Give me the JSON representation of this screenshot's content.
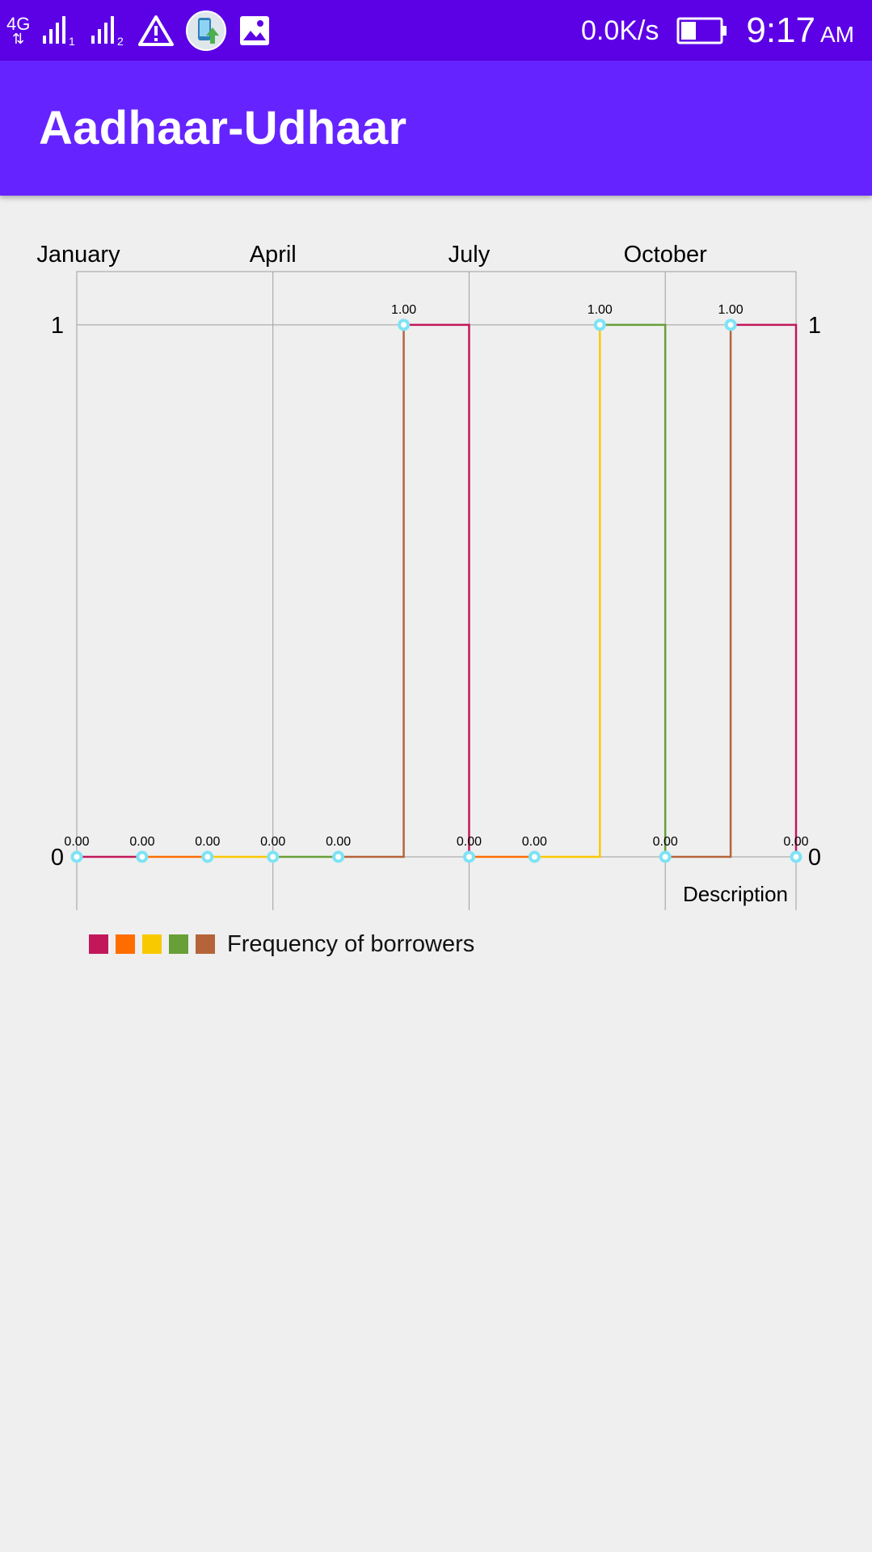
{
  "status_bar": {
    "network": "4G",
    "sim1_index": "1",
    "sim2_index": "2",
    "data_speed": "0.0K/s",
    "time": "9:17",
    "ampm": "AM",
    "icons": [
      "4g-arrows-icon",
      "signal-sim1-icon",
      "signal-sim2-icon",
      "warning-icon",
      "phone-update-icon",
      "image-icon",
      "battery-icon"
    ]
  },
  "app_bar": {
    "title": "Aadhaar-Udhaar"
  },
  "chart_data": {
    "type": "line",
    "stepped": true,
    "x": [
      0,
      1,
      2,
      3,
      4,
      5,
      6,
      7,
      8,
      9,
      10,
      11
    ],
    "x_tick_labels": [
      {
        "x": 0,
        "label": "January"
      },
      {
        "x": 3,
        "label": "April"
      },
      {
        "x": 6,
        "label": "July"
      },
      {
        "x": 9,
        "label": "October"
      }
    ],
    "values": [
      0,
      0,
      0,
      0,
      0,
      1,
      0,
      0,
      1,
      0,
      1,
      0
    ],
    "value_labels": [
      "0.00",
      "0.00",
      "0.00",
      "0.00",
      "0.00",
      "1.00",
      "0.00",
      "0.00",
      "1.00",
      "0.00",
      "1.00",
      "0.00"
    ],
    "segment_colors": [
      "#c2185b",
      "#ff6d00",
      "#f9c900",
      "#689f38",
      "#b5643a"
    ],
    "point_color": "#7de3f5",
    "y_ticks": [
      {
        "value": 0,
        "label": "0"
      },
      {
        "value": 1,
        "label": "1"
      }
    ],
    "ylim": [
      0,
      1.1
    ],
    "xlim": [
      0,
      11
    ],
    "description": "Description",
    "legend": {
      "colors": [
        "#c2185b",
        "#ff6d00",
        "#f9c900",
        "#689f38",
        "#b5643a"
      ],
      "label": "Frequency of borrowers"
    },
    "grid": true
  }
}
